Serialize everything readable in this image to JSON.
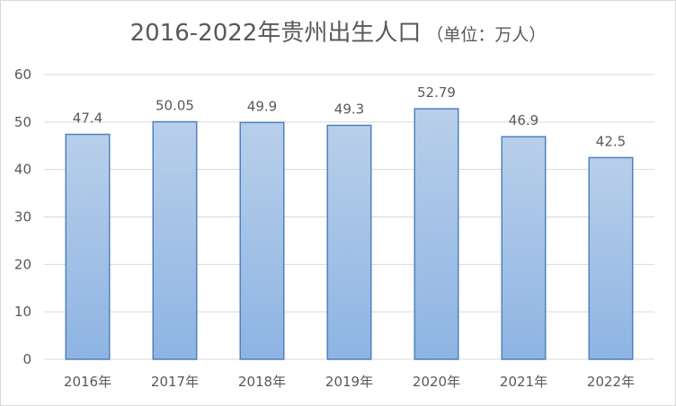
{
  "chart_data": {
    "type": "bar",
    "title": "2016-2022年贵州出生人口",
    "subtitle": "（单位：万人）",
    "categories": [
      "2016年",
      "2017年",
      "2018年",
      "2019年",
      "2020年",
      "2021年",
      "2022年"
    ],
    "values": [
      47.4,
      50.05,
      49.9,
      49.3,
      52.79,
      46.9,
      42.5
    ],
    "value_labels": [
      "47.4",
      "50.05",
      "49.9",
      "49.3",
      "52.79",
      "46.9",
      "42.5"
    ],
    "ylim": [
      0,
      60
    ],
    "yticks": [
      0,
      10,
      20,
      30,
      40,
      50,
      60
    ],
    "grid": true,
    "legend": "none",
    "colors": {
      "bar_top": "#b8cfea",
      "bar_bottom": "#8eb4e3",
      "bar_border": "#4f81bd",
      "grid": "#d9d9d9",
      "text": "#595959"
    }
  }
}
